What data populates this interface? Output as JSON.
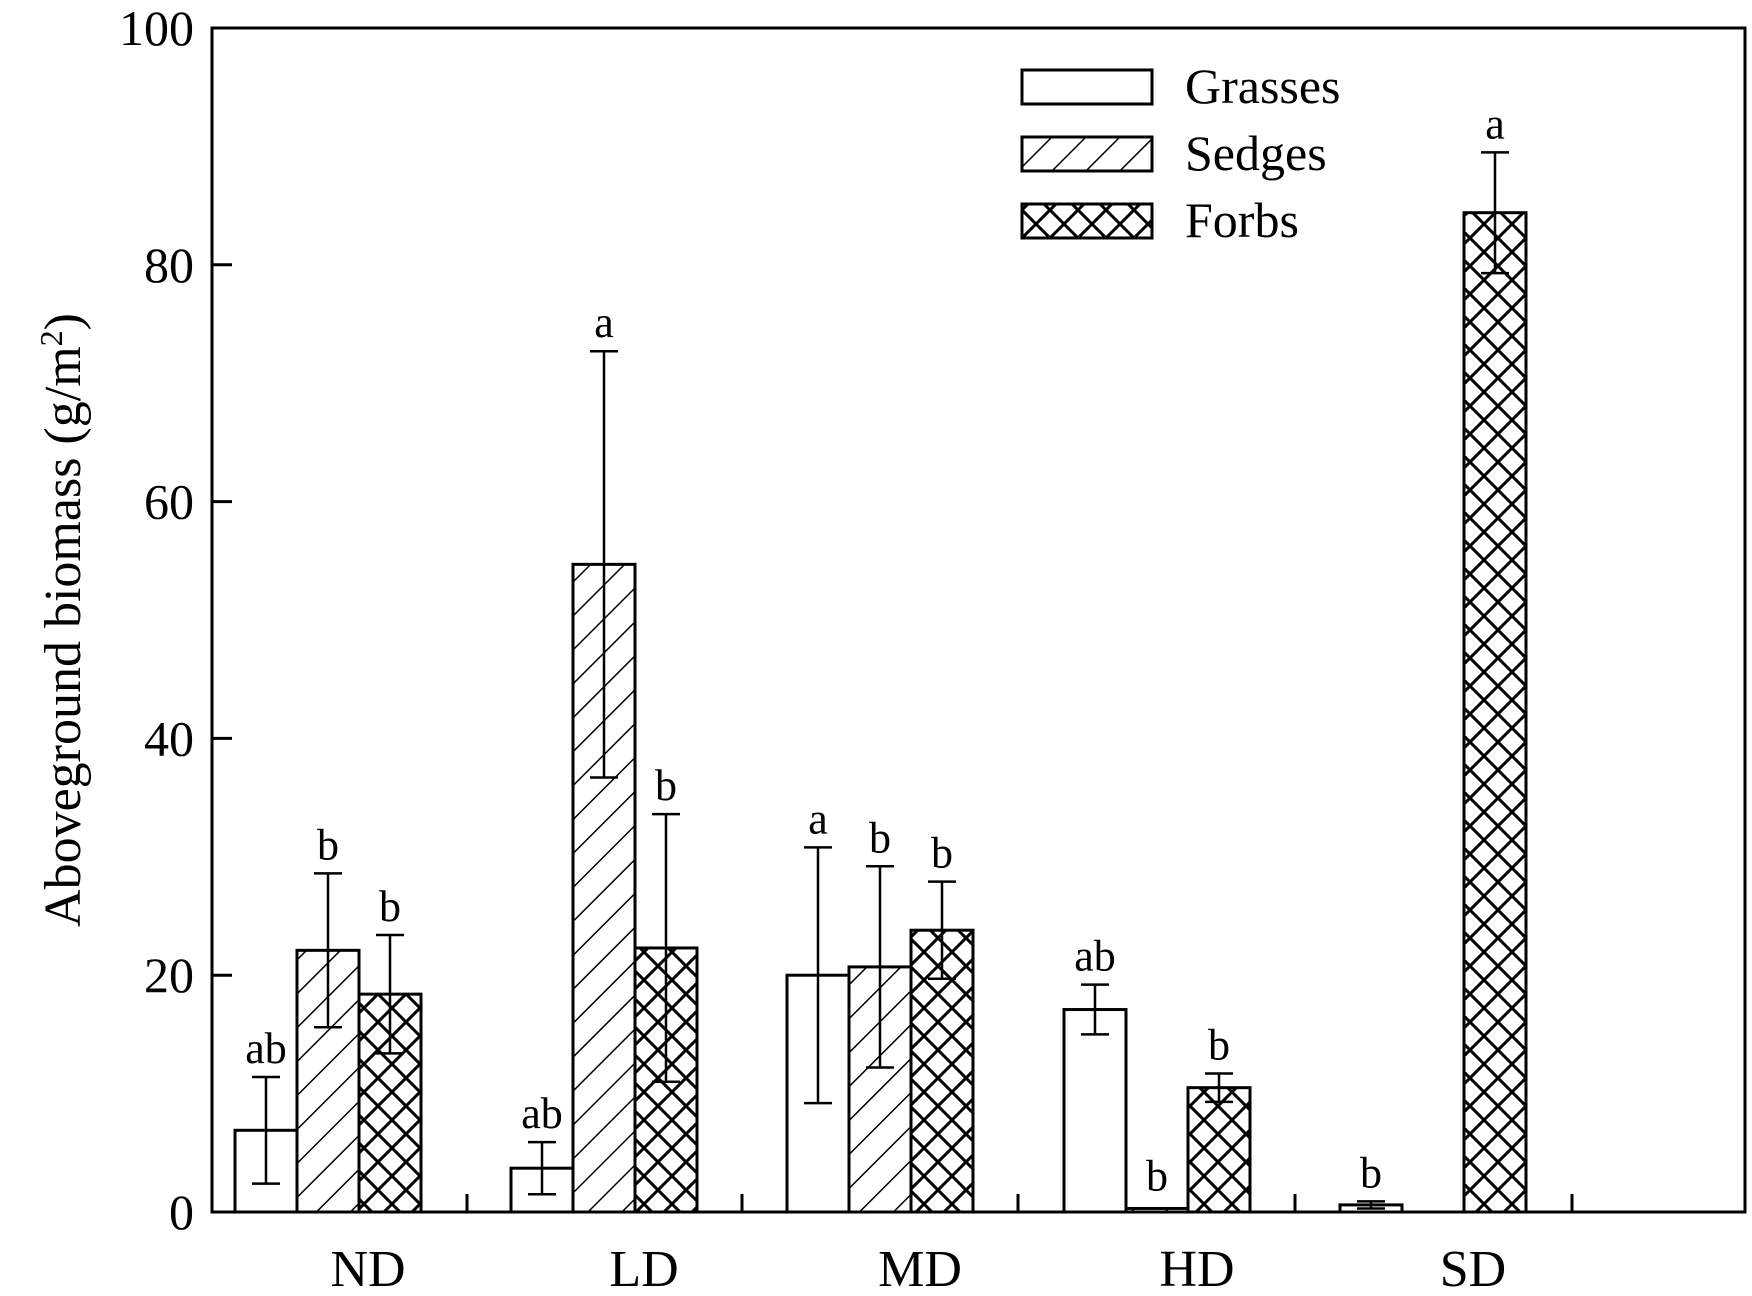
{
  "chart_data": {
    "type": "bar",
    "ylabel": "Aboveground biomass (g/m",
    "ylabel_sup": "2",
    "ylabel_close": ")",
    "ylim": [
      0,
      100
    ],
    "yticks": [
      "0",
      "20",
      "40",
      "60",
      "80",
      "100"
    ],
    "categories": [
      "ND",
      "LD",
      "MD",
      "HD",
      "SD"
    ],
    "legend_position": "top-right",
    "grid": false,
    "series": [
      {
        "name": "Grasses",
        "pattern": "none",
        "values": [
          6.9,
          3.7,
          20.0,
          17.1,
          0.6
        ],
        "errors": [
          4.5,
          2.2,
          10.8,
          2.1,
          0.3
        ],
        "labels": [
          "ab",
          "ab",
          "a",
          "ab",
          "b"
        ]
      },
      {
        "name": "Sedges",
        "pattern": "diagonal",
        "values": [
          22.1,
          54.7,
          20.7,
          0.3,
          0.0
        ],
        "errors": [
          6.5,
          18.0,
          8.5,
          0.0,
          0.0
        ],
        "labels": [
          "b",
          "a",
          "b",
          "b",
          ""
        ]
      },
      {
        "name": "Forbs",
        "pattern": "crosshatch",
        "values": [
          18.4,
          22.3,
          23.8,
          10.5,
          84.4
        ],
        "errors": [
          5.0,
          11.3,
          4.1,
          1.2,
          5.1
        ],
        "labels": [
          "b",
          "b",
          "b",
          "b",
          "a"
        ]
      }
    ],
    "colors": {
      "stroke": "#000000",
      "fill": "#ffffff"
    }
  }
}
